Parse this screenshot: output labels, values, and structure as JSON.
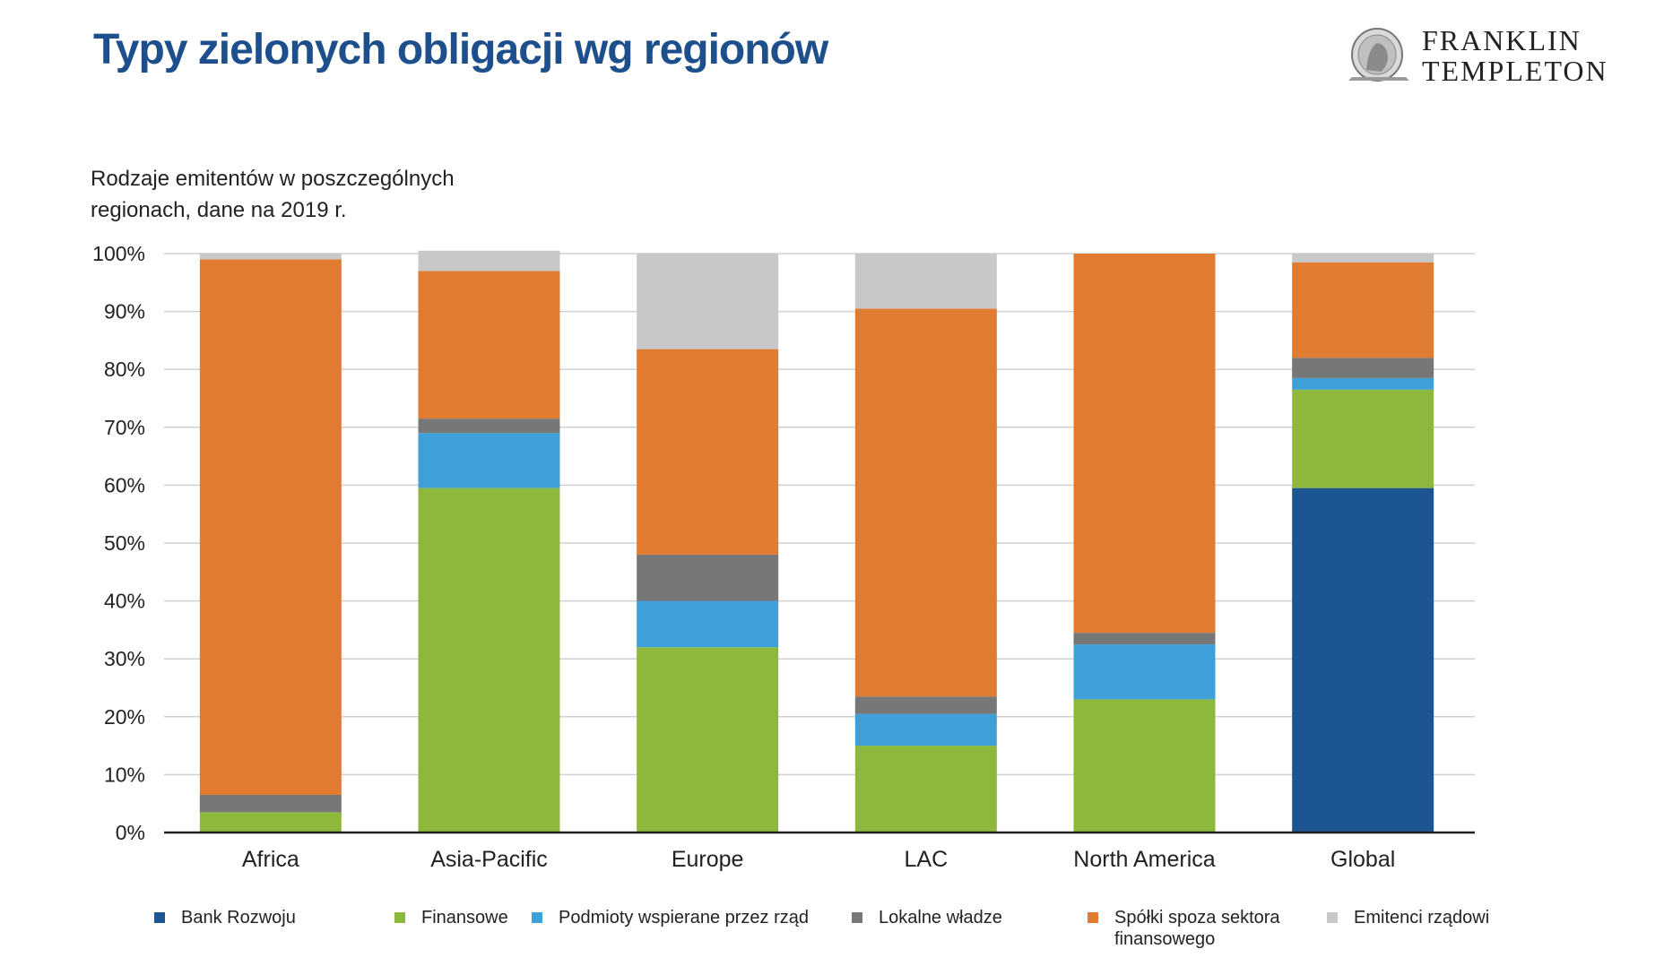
{
  "header": {
    "title": "Typy zielonych obligacji wg regionów",
    "logo_line1": "FRANKLIN",
    "logo_line2": "TEMPLETON"
  },
  "chart_data": {
    "type": "bar",
    "stacked": true,
    "subtitle": "Rodzaje emitentów w poszczególnych regionach, dane na 2019 r.",
    "categories": [
      "Africa",
      "Asia-Pacific",
      "Europe",
      "LAC",
      "North America",
      "Global"
    ],
    "ylim": [
      0,
      100
    ],
    "yticks": [
      "0%",
      "10%",
      "20%",
      "30%",
      "40%",
      "50%",
      "60%",
      "70%",
      "80%",
      "90%",
      "100%"
    ],
    "grid": true,
    "legend_position": "bottom",
    "series": [
      {
        "name": "Bank Rozwoju",
        "color": "#1d5592",
        "values": [
          0,
          0,
          0,
          0,
          0,
          59.5
        ]
      },
      {
        "name": "Finansowe",
        "color": "#8db83b",
        "values": [
          3.5,
          59.5,
          32,
          15,
          23,
          17
        ]
      },
      {
        "name": "Podmioty wspierane przez rząd",
        "color": "#3fa0d9",
        "values": [
          0,
          9.5,
          8,
          5.5,
          9.5,
          2
        ]
      },
      {
        "name": "Lokalne władze",
        "color": "#777777",
        "values": [
          3,
          2.5,
          8,
          3,
          2,
          3.5
        ]
      },
      {
        "name": "Spółki spoza sektora finansowego",
        "color": "#e07b30",
        "values": [
          92.5,
          25.5,
          35.5,
          67,
          65.5,
          16.5
        ]
      },
      {
        "name": "Emitenci rządowi",
        "color": "#c8c8c8",
        "values": [
          1,
          3.5,
          16.5,
          9.5,
          0,
          1.5
        ]
      }
    ]
  }
}
